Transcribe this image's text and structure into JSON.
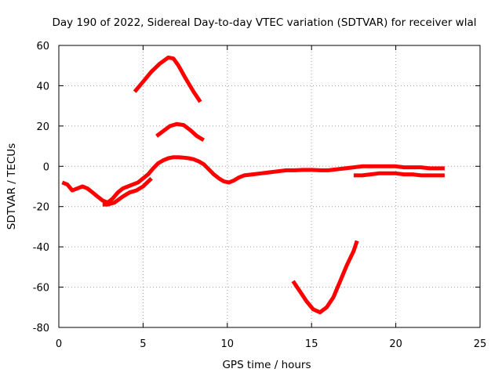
{
  "chart_data": {
    "type": "line",
    "title": "Day 190 of 2022, Sidereal Day-to-day VTEC variation (SDTVAR) for receiver wlal",
    "xlabel": "GPS time / hours",
    "ylabel": "SDTVAR / TECUs",
    "xlim": [
      0,
      25
    ],
    "ylim": [
      -80,
      60
    ],
    "xticks": [
      0,
      5,
      10,
      15,
      20,
      25
    ],
    "xtick_labels": [
      "0",
      "5",
      "10",
      "15",
      "20",
      "25"
    ],
    "yticks": [
      -80,
      -60,
      -40,
      -20,
      0,
      20,
      40,
      60
    ],
    "ytick_labels": [
      "-80",
      "-60",
      "-40",
      "-20",
      "0",
      "20",
      "40",
      "60"
    ],
    "grid": true,
    "color": "#ff0000",
    "series": [
      {
        "name": "main-trace",
        "points": [
          [
            0.2,
            -8
          ],
          [
            0.5,
            -9
          ],
          [
            0.8,
            -12
          ],
          [
            1.1,
            -11
          ],
          [
            1.4,
            -10
          ],
          [
            1.7,
            -11
          ],
          [
            2.0,
            -13
          ],
          [
            2.3,
            -15
          ],
          [
            2.6,
            -17
          ],
          [
            2.9,
            -18
          ],
          [
            3.2,
            -16
          ],
          [
            3.5,
            -13
          ],
          [
            3.8,
            -11
          ],
          [
            4.1,
            -10
          ],
          [
            4.4,
            -9
          ],
          [
            4.7,
            -8
          ],
          [
            5.0,
            -6
          ],
          [
            5.3,
            -4
          ],
          [
            5.6,
            -1
          ],
          [
            5.9,
            1.5
          ],
          [
            6.2,
            3
          ],
          [
            6.5,
            4
          ],
          [
            6.8,
            4.5
          ],
          [
            7.1,
            4.5
          ],
          [
            7.4,
            4.3
          ],
          [
            7.7,
            4
          ],
          [
            8.0,
            3.5
          ],
          [
            8.3,
            2.5
          ],
          [
            8.6,
            1
          ],
          [
            8.9,
            -1.5
          ],
          [
            9.2,
            -4
          ],
          [
            9.5,
            -6
          ],
          [
            9.8,
            -7.5
          ],
          [
            10.1,
            -8
          ],
          [
            10.4,
            -7
          ],
          [
            10.7,
            -5.5
          ],
          [
            11.0,
            -4.5
          ],
          [
            11.5,
            -4
          ],
          [
            12.0,
            -3.5
          ],
          [
            12.5,
            -3
          ],
          [
            13.0,
            -2.5
          ],
          [
            13.5,
            -2
          ],
          [
            14.0,
            -2
          ],
          [
            14.5,
            -1.8
          ],
          [
            15.0,
            -1.8
          ],
          [
            15.5,
            -2
          ],
          [
            16.0,
            -2
          ],
          [
            16.5,
            -1.5
          ],
          [
            17.0,
            -1
          ],
          [
            17.5,
            -0.5
          ],
          [
            18.0,
            0
          ],
          [
            18.5,
            0
          ],
          [
            19.0,
            0
          ],
          [
            19.5,
            0
          ],
          [
            20.0,
            0
          ],
          [
            20.5,
            -0.5
          ],
          [
            21.0,
            -0.5
          ],
          [
            21.5,
            -0.5
          ],
          [
            22.0,
            -1
          ],
          [
            22.5,
            -1
          ],
          [
            22.9,
            -1
          ]
        ]
      },
      {
        "name": "main-trace-lower",
        "points": [
          [
            2.6,
            -19
          ],
          [
            2.9,
            -19
          ],
          [
            3.3,
            -18
          ],
          [
            3.8,
            -15
          ],
          [
            4.2,
            -13
          ],
          [
            4.6,
            -12
          ],
          [
            5.0,
            -10
          ],
          [
            5.5,
            -6
          ]
        ]
      },
      {
        "name": "upper-band",
        "points": [
          [
            17.5,
            -4.5
          ],
          [
            18.0,
            -4.5
          ],
          [
            18.5,
            -4
          ],
          [
            19.0,
            -3.5
          ],
          [
            19.5,
            -3.5
          ],
          [
            20.0,
            -3.5
          ],
          [
            20.5,
            -4
          ],
          [
            21.0,
            -4
          ],
          [
            21.5,
            -4.5
          ],
          [
            22.0,
            -4.5
          ],
          [
            22.5,
            -4.5
          ],
          [
            22.9,
            -4.5
          ]
        ]
      },
      {
        "name": "peak-55",
        "points": [
          [
            4.5,
            37
          ],
          [
            5.0,
            42
          ],
          [
            5.5,
            47
          ],
          [
            6.0,
            51
          ],
          [
            6.5,
            54
          ],
          [
            6.8,
            53.5
          ],
          [
            7.1,
            50
          ],
          [
            7.5,
            44
          ],
          [
            8.0,
            37
          ],
          [
            8.4,
            32
          ]
        ]
      },
      {
        "name": "peak-21",
        "points": [
          [
            5.8,
            15
          ],
          [
            6.2,
            17.5
          ],
          [
            6.6,
            20
          ],
          [
            7.0,
            21
          ],
          [
            7.4,
            20.5
          ],
          [
            7.8,
            18
          ],
          [
            8.2,
            15
          ],
          [
            8.6,
            13
          ]
        ]
      },
      {
        "name": "dip-72",
        "points": [
          [
            13.9,
            -57
          ],
          [
            14.3,
            -62
          ],
          [
            14.7,
            -67
          ],
          [
            15.1,
            -71
          ],
          [
            15.5,
            -72.5
          ],
          [
            15.9,
            -70
          ],
          [
            16.3,
            -65
          ],
          [
            16.7,
            -57
          ],
          [
            17.1,
            -49
          ],
          [
            17.5,
            -42
          ],
          [
            17.7,
            -37
          ]
        ]
      }
    ]
  }
}
